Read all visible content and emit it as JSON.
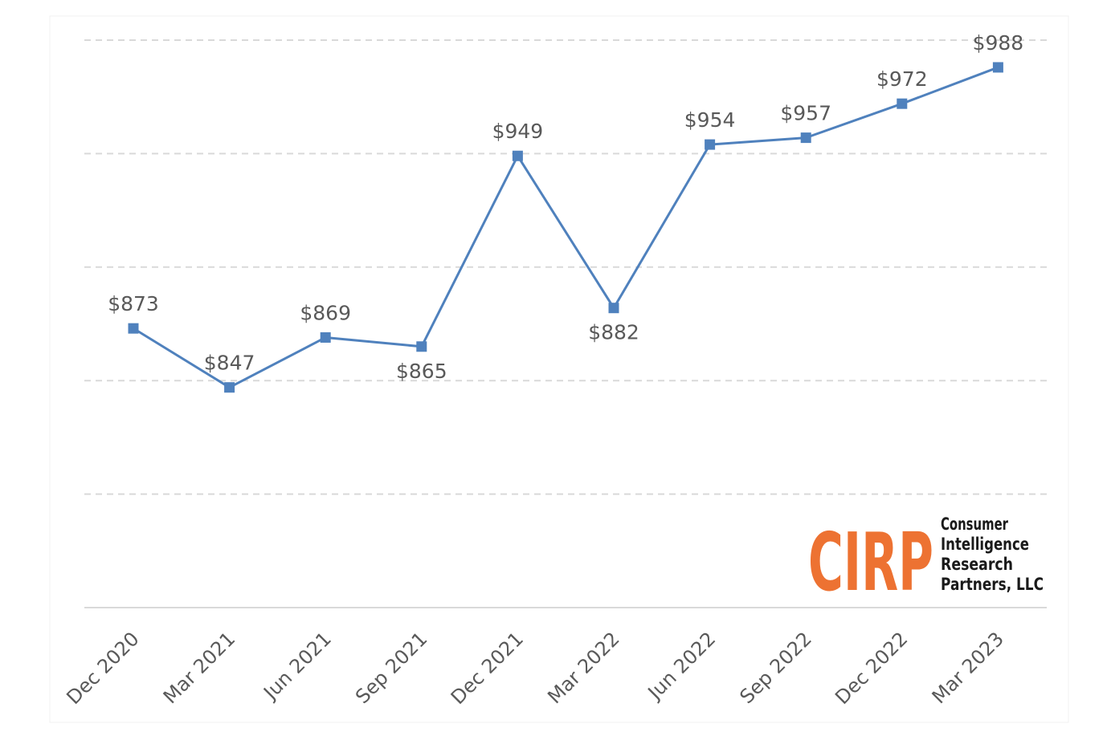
{
  "chart_data": {
    "type": "line",
    "categories": [
      "Dec 2020",
      "Mar 2021",
      "Jun 2021",
      "Sep 2021",
      "Dec 2021",
      "Mar 2022",
      "Jun 2022",
      "Sep 2022",
      "Dec 2022",
      "Mar 2023"
    ],
    "series": [
      {
        "values": [
          873,
          847,
          869,
          865,
          949,
          882,
          954,
          957,
          972,
          988
        ],
        "labels": [
          "$873",
          "$847",
          "$869",
          "$865",
          "$949",
          "$882",
          "$954",
          "$957",
          "$972",
          "$988"
        ],
        "color": "#4F81BD",
        "marker": "square"
      }
    ],
    "title": "",
    "xlabel": "",
    "ylabel": "",
    "ylim": [
      750,
      1000
    ],
    "gridlines": [
      800,
      850,
      900,
      950,
      1000
    ],
    "grid": true,
    "grid_style": "dashed",
    "y_tick_labels_visible": false,
    "label_positions": [
      "above",
      "above",
      "above",
      "below",
      "above",
      "below",
      "above",
      "above",
      "above",
      "above"
    ]
  },
  "logo": {
    "mark": "CIRP",
    "lines": [
      "Consumer",
      "Intelligence",
      "Research",
      "Partners, LLC"
    ],
    "mark_color": "#ED7232",
    "text_color": "#1a1a1a"
  },
  "colors": {
    "line": "#4F81BD",
    "grid": "#d9d9d9",
    "axis": "#d9d9d9",
    "label_text": "#595959",
    "frame": "#f0f0f0"
  }
}
